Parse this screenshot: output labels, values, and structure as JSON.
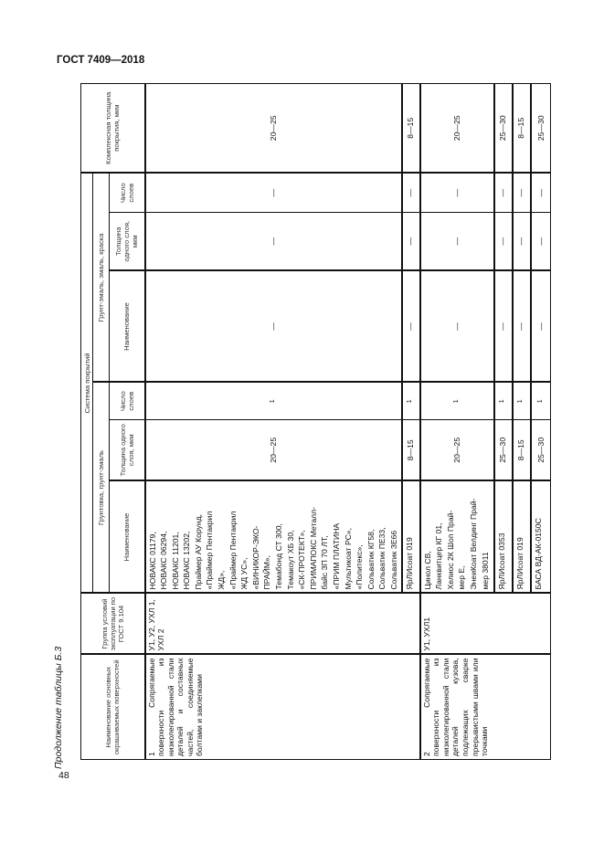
{
  "header": {
    "standard": "ГОСТ 7409—2018"
  },
  "page_number": "48",
  "caption": "Продолжение таблицы Б.3",
  "table": {
    "headers": {
      "surface": "Наименование основных окрашиваемых поверхностей",
      "group": "Группа условий эксплуатации по ГОСТ 9.104",
      "system": "Система покрытий",
      "primer": "Грунтовка, грунт-эмаль",
      "enamel": "Грунт-эмаль, эмаль, краска",
      "name": "Наименование",
      "thickness": "Толщина одного слоя, мкм",
      "layers": "Число слоев",
      "total": "Комплексная толщина покрытия, мкм"
    },
    "groups": [
      {
        "surface": "1 Сопрягаемые поверхности из низколегированной стали деталей и составных частей, соединяемые болтами и заклепками",
        "group": "У1, У2, УХЛ 1, УХЛ 2",
        "rows": [
          {
            "primer_lines": [
              "НОВАКС 01179,",
              "НОВАКС 06294,",
              "НОВАКС 11201,",
              "НОВАКС 13202,",
              "Праймер АУ Корунд,",
              "«Праймер Пентакрил",
              "ЖД»,",
              "«Праймер Пентакрил",
              "ЖД УС»,",
              "«ВИНИКОР-ЭКО-",
              "ПРАЙМ»,",
              "Темабонд СТ 300,",
              "Темакоут ХБ 30,",
              "«СК-ПРОТЕКТ»,",
              "ПРИМАПОКС Металл-",
              "байс ЗП 70 ЛТ,",
              "«ПРИМ ПЛАТИНА",
              "Мультикоат РС»,",
              "«Политекс»,",
              "Сольватик КГ58,",
              "Сольватик ПЕ33,",
              "Сольватик ЗЕ66"
            ],
            "primer_thickness": "20—25",
            "primer_layers": "1",
            "enamel_name": "—",
            "enamel_thickness": "—",
            "enamel_layers": "—",
            "total": "20—25"
          },
          {
            "primer_lines": [
              "ЯрЛИсоат 019"
            ],
            "primer_thickness": "8—15",
            "primer_layers": "1",
            "enamel_name": "—",
            "enamel_thickness": "—",
            "enamel_layers": "—",
            "total": "8—15"
          }
        ]
      },
      {
        "surface": "2 Сопрягаемые поверхности из низколегированной стали деталей кузова, подлежащих сварке прерывистыми швами или точками",
        "group": "У1, УХЛ1",
        "rows": [
          {
            "primer_lines": [
              "Цинол СВ,",
              "Ланквитцер КГ 01,",
              "Хелиос 2К Шоп Прай-",
              "мер Е,",
              "ЭнеиКоат Велдинг Прай-",
              "мер 38011"
            ],
            "primer_thickness": "20—25",
            "primer_layers": "1",
            "enamel_name": "—",
            "enamel_thickness": "—",
            "enamel_layers": "—",
            "total": "20—25"
          },
          {
            "primer_lines": [
              "ЯрЛИсоат 0353"
            ],
            "primer_thickness": "25—30",
            "primer_layers": "1",
            "enamel_name": "—",
            "enamel_thickness": "—",
            "enamel_layers": "—",
            "total": "25—30"
          },
          {
            "primer_lines": [
              "ЯрЛИсоат 019"
            ],
            "primer_thickness": "8—15",
            "primer_layers": "1",
            "enamel_name": "—",
            "enamel_thickness": "—",
            "enamel_layers": "—",
            "total": "8—15"
          },
          {
            "primer_lines": [
              "БАСА ВД-АК-0150С"
            ],
            "primer_thickness": "25—30",
            "primer_layers": "1",
            "enamel_name": "—",
            "enamel_thickness": "—",
            "enamel_layers": "—",
            "total": "25—30"
          }
        ]
      }
    ]
  }
}
